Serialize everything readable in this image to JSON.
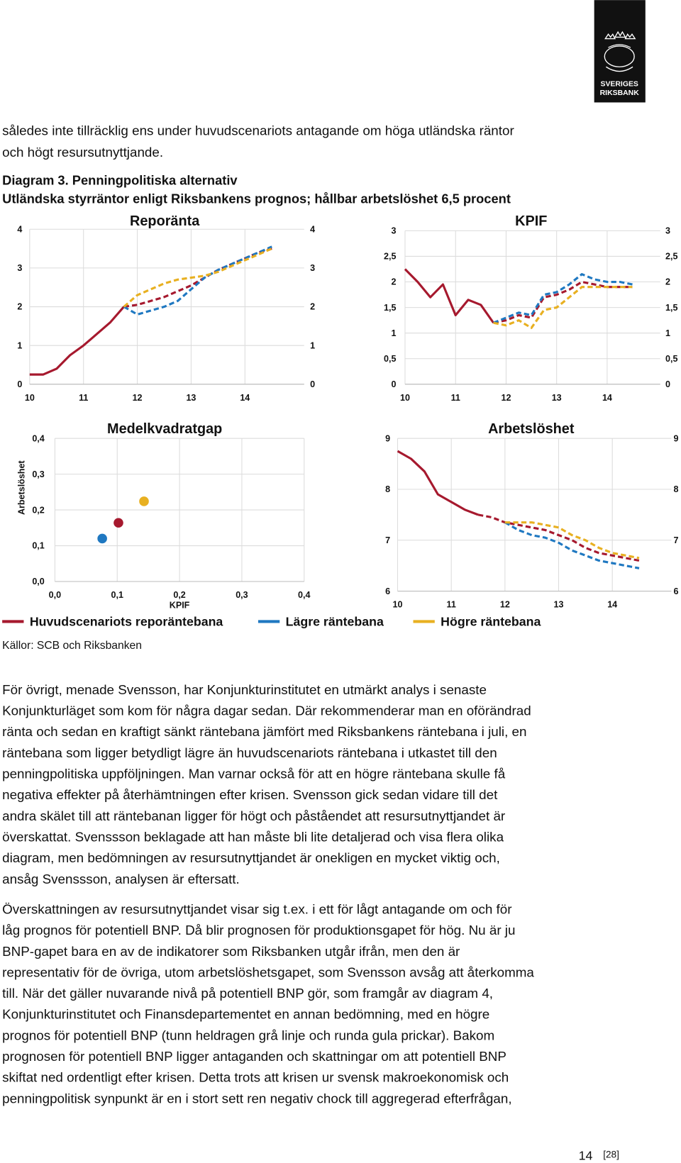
{
  "logo": {
    "line1": "SVERIGES",
    "line2": "RIKSBANK"
  },
  "intro": [
    "således inte tillräcklig ens under huvudscenariots antagande om höga utländska räntor",
    "och högt resursutnyttjande."
  ],
  "figure_title": "Diagram 3. Penningpolitiska alternativ",
  "figure_subtitle": "Utländska styrräntor enligt Riksbankens prognos; hållbar arbetslöshet 6,5 procent",
  "chart_data": [
    {
      "type": "line",
      "title": "Reporänta",
      "x": [
        10,
        10.25,
        10.5,
        10.75,
        11,
        11.25,
        11.5,
        11.75,
        12,
        12.25,
        12.5,
        12.75,
        13,
        13.25,
        13.5,
        13.75,
        14,
        14.25,
        14.5
      ],
      "series": [
        {
          "name": "Huvudscenariots reporäntebana",
          "color": "#a6192e",
          "values": [
            0.25,
            0.25,
            0.4,
            0.75,
            1.0,
            1.3,
            1.6,
            2.0,
            2.05,
            2.15,
            2.25,
            2.4,
            2.55,
            2.75,
            2.95,
            3.1,
            3.25,
            3.4,
            3.5
          ]
        },
        {
          "name": "Lägre räntebana",
          "color": "#1f78c1",
          "values": [
            null,
            null,
            null,
            null,
            null,
            null,
            null,
            2.0,
            1.8,
            1.9,
            2.0,
            2.15,
            2.45,
            2.75,
            2.95,
            3.1,
            3.25,
            3.4,
            3.55
          ]
        },
        {
          "name": "Högre räntebana",
          "color": "#e8b021",
          "values": [
            null,
            null,
            null,
            null,
            null,
            null,
            null,
            2.0,
            2.3,
            2.45,
            2.6,
            2.7,
            2.75,
            2.8,
            2.9,
            3.05,
            3.2,
            3.35,
            3.5
          ]
        }
      ],
      "forecast_from": 11.75,
      "xlim": [
        10,
        15.1
      ],
      "xticks": [
        10,
        11,
        12,
        13,
        14
      ],
      "ylim": [
        0,
        4
      ],
      "yticks": [
        0,
        1,
        2,
        3,
        4
      ],
      "right_axis": true,
      "grid": true
    },
    {
      "type": "line",
      "title": "KPIF",
      "x": [
        10,
        10.25,
        10.5,
        10.75,
        11,
        11.25,
        11.5,
        11.75,
        12,
        12.25,
        12.5,
        12.75,
        13,
        13.25,
        13.5,
        13.75,
        14,
        14.25,
        14.5
      ],
      "series": [
        {
          "color": "#a6192e",
          "values": [
            2.25,
            2.0,
            1.7,
            1.95,
            1.35,
            1.65,
            1.55,
            1.2,
            1.25,
            1.35,
            1.3,
            1.7,
            1.75,
            1.85,
            2.0,
            1.95,
            1.9,
            1.9,
            1.9
          ]
        },
        {
          "color": "#1f78c1",
          "values": [
            null,
            null,
            null,
            null,
            null,
            null,
            null,
            1.2,
            1.3,
            1.4,
            1.35,
            1.75,
            1.8,
            1.95,
            2.15,
            2.05,
            2.0,
            2.0,
            1.95
          ]
        },
        {
          "color": "#e8b021",
          "values": [
            null,
            null,
            null,
            null,
            null,
            null,
            null,
            1.2,
            1.15,
            1.25,
            1.1,
            1.45,
            1.5,
            1.7,
            1.9,
            1.9,
            1.9,
            1.9,
            1.9
          ]
        }
      ],
      "forecast_from": 11.75,
      "xlim": [
        10,
        15.05
      ],
      "xticks": [
        10,
        11,
        12,
        13,
        14
      ],
      "ylim": [
        0,
        3
      ],
      "yticks": [
        0,
        {
          "value": 0.5,
          "label": "0,5"
        },
        1,
        {
          "value": 1.5,
          "label": "1,5"
        },
        2,
        {
          "value": 2.5,
          "label": "2,5"
        },
        3
      ],
      "right_axis": true,
      "grid": true
    },
    {
      "type": "scatter",
      "title": "Medelkvadratgap",
      "x_label": "KPIF",
      "y_label": "Arbetslöshet",
      "series": [
        {
          "color": "#a6192e",
          "x": [
            0.102
          ],
          "values": [
            0.164
          ]
        },
        {
          "color": "#1f78c1",
          "x": [
            0.076
          ],
          "values": [
            0.12
          ]
        },
        {
          "color": "#e8b021",
          "x": [
            0.143
          ],
          "values": [
            0.224
          ]
        }
      ],
      "xlim": [
        0,
        0.4
      ],
      "xticks": [
        {
          "value": 0,
          "label": "0,0"
        },
        {
          "value": 0.1,
          "label": "0,1"
        },
        {
          "value": 0.2,
          "label": "0,2"
        },
        {
          "value": 0.3,
          "label": "0,3"
        },
        {
          "value": 0.4,
          "label": "0,4"
        }
      ],
      "ylim": [
        0,
        0.4
      ],
      "yticks": [
        {
          "value": 0,
          "label": "0,0"
        },
        {
          "value": 0.1,
          "label": "0,1"
        },
        {
          "value": 0.2,
          "label": "0,2"
        },
        {
          "value": 0.3,
          "label": "0,3"
        },
        {
          "value": 0.4,
          "label": "0,4"
        }
      ],
      "grid": true
    },
    {
      "type": "line",
      "title": "Arbetslöshet",
      "x": [
        10,
        10.25,
        10.5,
        10.75,
        11,
        11.25,
        11.5,
        11.75,
        12,
        12.25,
        12.5,
        12.75,
        13,
        13.25,
        13.5,
        13.75,
        14,
        14.25,
        14.5
      ],
      "series": [
        {
          "color": "#a6192e",
          "values": [
            8.75,
            8.6,
            8.35,
            7.9,
            7.75,
            7.6,
            7.5,
            7.45,
            7.35,
            7.3,
            7.25,
            7.2,
            7.1,
            7.0,
            6.85,
            6.75,
            6.7,
            6.65,
            6.6
          ]
        },
        {
          "color": "#1f78c1",
          "values": [
            null,
            null,
            null,
            null,
            null,
            null,
            null,
            null,
            7.35,
            7.2,
            7.1,
            7.05,
            6.95,
            6.8,
            6.7,
            6.6,
            6.55,
            6.5,
            6.45
          ]
        },
        {
          "color": "#e8b021",
          "values": [
            null,
            null,
            null,
            null,
            null,
            null,
            null,
            null,
            7.35,
            7.35,
            7.35,
            7.3,
            7.25,
            7.1,
            7.0,
            6.85,
            6.75,
            6.7,
            6.65
          ]
        }
      ],
      "forecast_from": 11.5,
      "xlim": [
        10,
        15.1
      ],
      "xticks": [
        10,
        11,
        12,
        13,
        14
      ],
      "ylim": [
        6,
        9
      ],
      "yticks": [
        6,
        7,
        8,
        9
      ],
      "right_axis": true,
      "grid": true
    }
  ],
  "source": "Källor: SCB och Riksbanken",
  "paragraphs": [
    [
      "För övrigt, menade Svensson, har Konjunkturinstitutet en utmärkt analys i senaste",
      "Konjunkturläget som kom för några dagar sedan. Där rekommenderar man en oförändrad",
      "ränta och sedan en kraftigt sänkt räntebana jämfört med Riksbankens räntebana i juli, en",
      "räntebana som ligger betydligt lägre än huvudscenariots räntebana i utkastet till den",
      "penningpolitiska uppföljningen. Man varnar också för att en högre räntebana skulle få",
      "negativa effekter på återhämtningen efter krisen. Svensson gick sedan vidare till det",
      "andra skälet till att räntebanan ligger för högt och påståendet att resursutnyttjandet är",
      "överskattat. Svenssson beklagade att han måste bli lite detaljerad och visa flera olika",
      "diagram, men bedömningen av resursutnyttjandet är onekligen en mycket viktig och,",
      "ansåg Svenssson, analysen är eftersatt."
    ],
    [
      "Överskattningen av resursutnyttjandet visar sig t.ex. i ett för lågt antagande om och för",
      "låg prognos för potentiell BNP. Då blir prognosen för produktionsgapet för hög. Nu är ju",
      "BNP-gapet bara en av de indikatorer som Riksbanken utgår ifrån, men den är",
      "representativ för de övriga, utom arbetslöshetsgapet, som Svensson avsåg att återkomma",
      "till. När det gäller nuvarande nivå på potentiell BNP gör, som framgår av diagram 4,",
      "Konjunkturinstitutet och Finansdepartementet en annan bedömning, med en högre",
      "prognos för potentiell BNP (tunn heldragen grå linje och runda gula prickar). Bakom",
      "prognosen för potentiell BNP ligger antaganden och skattningar om att potentiell BNP",
      "skiftat ned ordentligt efter krisen. Detta trots att krisen ur svensk makroekonomisk och",
      "penningpolitisk synpunkt är en i stort sett ren negativ chock till aggregerad efterfrågan,"
    ]
  ],
  "page_number": "14",
  "page_ref": "[28]"
}
